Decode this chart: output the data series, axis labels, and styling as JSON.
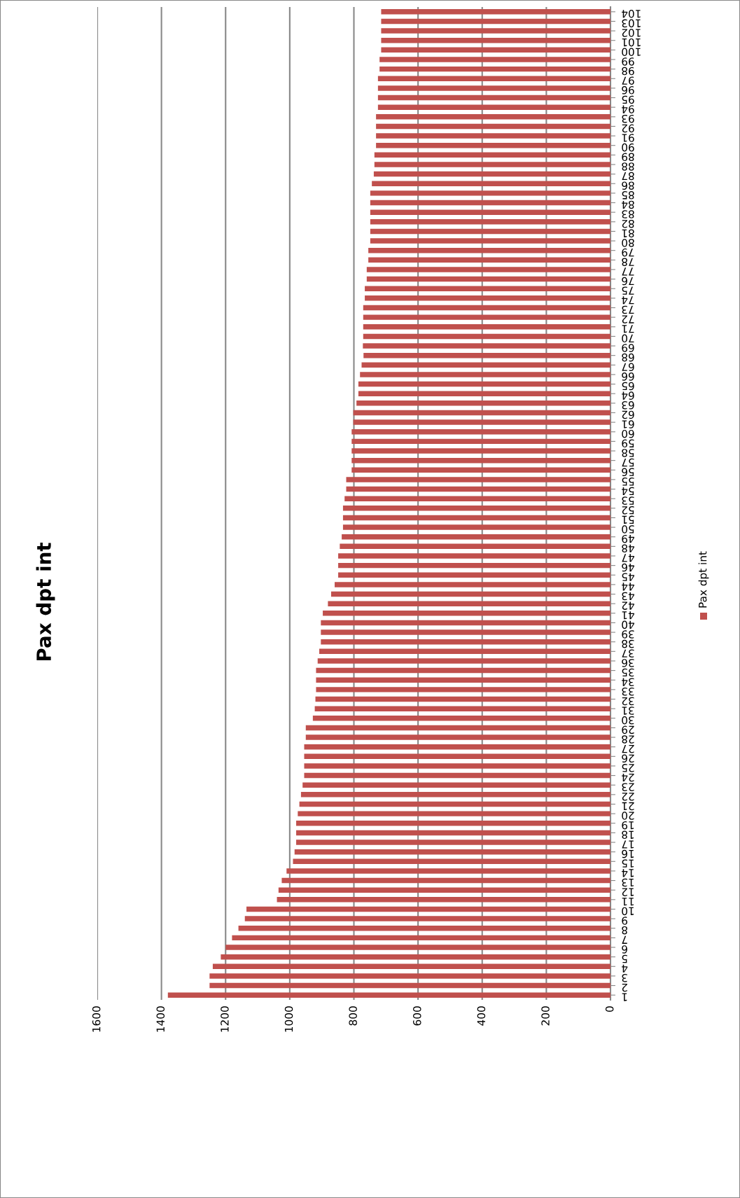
{
  "chart_data": {
    "type": "bar",
    "orientation": "horizontal",
    "title": "Pax dpt int",
    "categories": [
      "104",
      "103",
      "102",
      "101",
      "100",
      "99",
      "98",
      "97",
      "96",
      "95",
      "94",
      "93",
      "92",
      "91",
      "90",
      "89",
      "88",
      "87",
      "86",
      "85",
      "84",
      "83",
      "82",
      "81",
      "80",
      "79",
      "78",
      "77",
      "76",
      "75",
      "74",
      "73",
      "72",
      "71",
      "70",
      "69",
      "68",
      "67",
      "66",
      "65",
      "64",
      "63",
      "62",
      "61",
      "60",
      "59",
      "58",
      "57",
      "56",
      "55",
      "54",
      "53",
      "52",
      "51",
      "50",
      "49",
      "48",
      "47",
      "46",
      "45",
      "44",
      "43",
      "42",
      "41",
      "40",
      "39",
      "38",
      "37",
      "36",
      "35",
      "34",
      "33",
      "32",
      "31",
      "30",
      "29",
      "28",
      "27",
      "26",
      "25",
      "24",
      "23",
      "22",
      "21",
      "20",
      "19",
      "18",
      "17",
      "16",
      "15",
      "14",
      "13",
      "12",
      "11",
      "10",
      "9",
      "8",
      "7",
      "6",
      "5",
      "4",
      "3",
      "2",
      "1"
    ],
    "series": [
      {
        "name": "Pax dpt int",
        "color": "#c0504d",
        "values": [
          715,
          715,
          715,
          715,
          715,
          720,
          720,
          725,
          725,
          725,
          725,
          731,
          731,
          731,
          731,
          736,
          736,
          738,
          744,
          749,
          749,
          749,
          749,
          749,
          749,
          755,
          755,
          760,
          760,
          766,
          766,
          771,
          771,
          771,
          771,
          772,
          770,
          776,
          781,
          786,
          786,
          792,
          802,
          802,
          807,
          807,
          807,
          807,
          807,
          824,
          824,
          829,
          834,
          834,
          834,
          838,
          844,
          849,
          849,
          849,
          860,
          871,
          881,
          897,
          903,
          903,
          903,
          908,
          913,
          918,
          918,
          918,
          920,
          922,
          928,
          950,
          950,
          955,
          955,
          955,
          955,
          960,
          965,
          970,
          975,
          980,
          980,
          980,
          985,
          990,
          1010,
          1025,
          1035,
          1040,
          1135,
          1140,
          1160,
          1180,
          1200,
          1215,
          1240,
          1250,
          1250,
          1380
        ]
      }
    ],
    "xlim": [
      1600,
      0
    ],
    "xticks": [
      0,
      200,
      400,
      600,
      800,
      1000,
      1200,
      1400,
      1600
    ],
    "grid": "x",
    "legend": "right"
  }
}
